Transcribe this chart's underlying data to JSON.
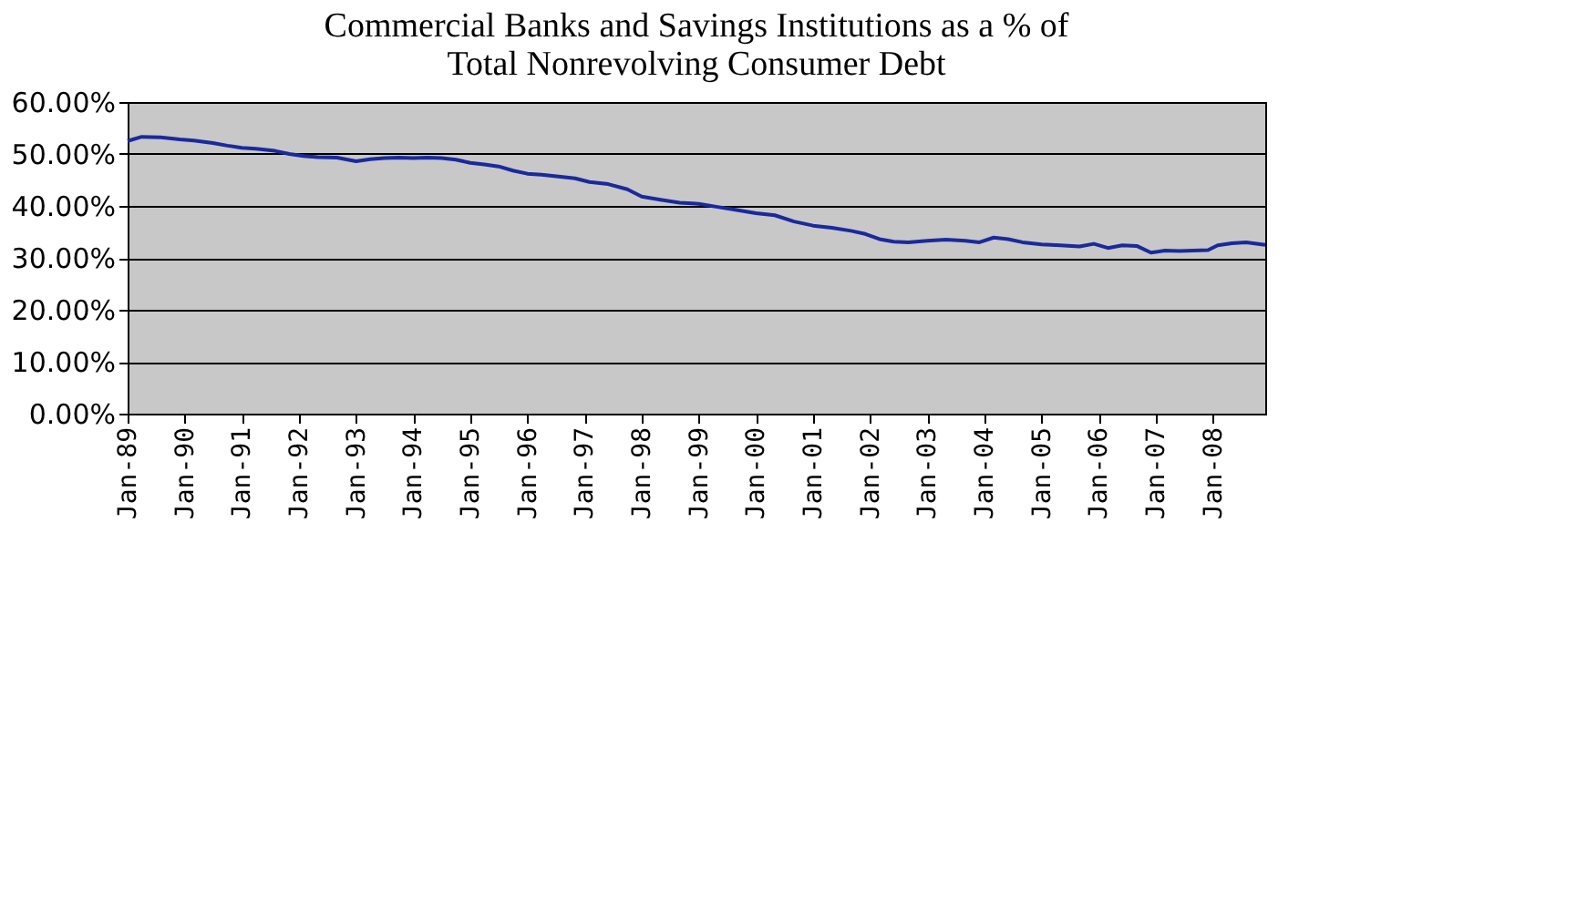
{
  "chart_data": {
    "type": "line",
    "title": "Commercial Banks and Savings Institutions as a % of Total Nonrevolving Consumer Debt",
    "x": [
      "1989-01",
      "1989-04",
      "1989-08",
      "1989-12",
      "1990-03",
      "1990-07",
      "1990-10",
      "1991-01",
      "1991-04",
      "1991-08",
      "1991-11",
      "1992-02",
      "1992-05",
      "1992-09",
      "1993-01",
      "1993-04",
      "1993-07",
      "1993-10",
      "1994-01",
      "1994-04",
      "1994-07",
      "1994-10",
      "1995-01",
      "1995-04",
      "1995-07",
      "1995-10",
      "1996-01",
      "1996-04",
      "1996-08",
      "1996-11",
      "1997-02",
      "1997-06",
      "1997-10",
      "1998-01",
      "1998-05",
      "1998-09",
      "1999-01",
      "1999-05",
      "1999-09",
      "2000-01",
      "2000-05",
      "2000-09",
      "2001-01",
      "2001-05",
      "2001-09",
      "2001-12",
      "2002-03",
      "2002-06",
      "2002-09",
      "2003-01",
      "2003-05",
      "2003-09",
      "2003-12",
      "2004-03",
      "2004-06",
      "2004-09",
      "2005-01",
      "2005-05",
      "2005-09",
      "2005-12",
      "2006-03",
      "2006-06",
      "2006-09",
      "2006-12",
      "2007-03",
      "2007-06",
      "2007-09",
      "2007-12",
      "2008-02",
      "2008-05",
      "2008-08",
      "2008-12"
    ],
    "series": [
      {
        "color": "#1a2a9c",
        "values": [
          52.5,
          53.3,
          53.2,
          52.8,
          52.6,
          52.1,
          51.6,
          51.2,
          51.0,
          50.6,
          50.0,
          49.6,
          49.4,
          49.3,
          48.6,
          49.0,
          49.2,
          49.3,
          49.2,
          49.3,
          49.2,
          48.9,
          48.3,
          48.0,
          47.6,
          46.8,
          46.2,
          46.0,
          45.6,
          45.3,
          44.6,
          44.2,
          43.2,
          41.8,
          41.2,
          40.6,
          40.4,
          39.8,
          39.2,
          38.6,
          38.2,
          37.0,
          36.2,
          35.8,
          35.2,
          34.6,
          33.6,
          33.1,
          33.0,
          33.3,
          33.5,
          33.3,
          33.0,
          33.9,
          33.6,
          33.0,
          32.6,
          32.4,
          32.2,
          32.7,
          31.9,
          32.4,
          32.3,
          31.0,
          31.4,
          31.3,
          31.4,
          31.5,
          32.4,
          32.8,
          33.0,
          32.5
        ]
      }
    ],
    "ylim": [
      0,
      60
    ],
    "yticks": [
      {
        "value": 0,
        "label": "0.00%"
      },
      {
        "value": 10,
        "label": "10.00%"
      },
      {
        "value": 20,
        "label": "20.00%"
      },
      {
        "value": 30,
        "label": "30.00%"
      },
      {
        "value": 40,
        "label": "40.00%"
      },
      {
        "value": 50,
        "label": "50.00%"
      },
      {
        "value": 60,
        "label": "60.00%"
      }
    ],
    "xlim": [
      "1989-01",
      "2008-12"
    ],
    "xticks": [
      {
        "value": "1989-01",
        "label": "Jan-89"
      },
      {
        "value": "1990-01",
        "label": "Jan-90"
      },
      {
        "value": "1991-01",
        "label": "Jan-91"
      },
      {
        "value": "1992-01",
        "label": "Jan-92"
      },
      {
        "value": "1993-01",
        "label": "Jan-93"
      },
      {
        "value": "1994-01",
        "label": "Jan-94"
      },
      {
        "value": "1995-01",
        "label": "Jan-95"
      },
      {
        "value": "1996-01",
        "label": "Jan-96"
      },
      {
        "value": "1997-01",
        "label": "Jan-97"
      },
      {
        "value": "1998-01",
        "label": "Jan-98"
      },
      {
        "value": "1999-01",
        "label": "Jan-99"
      },
      {
        "value": "2000-01",
        "label": "Jan-00"
      },
      {
        "value": "2001-01",
        "label": "Jan-01"
      },
      {
        "value": "2002-01",
        "label": "Jan-02"
      },
      {
        "value": "2003-01",
        "label": "Jan-03"
      },
      {
        "value": "2004-01",
        "label": "Jan-04"
      },
      {
        "value": "2005-01",
        "label": "Jan-05"
      },
      {
        "value": "2006-01",
        "label": "Jan-06"
      },
      {
        "value": "2007-01",
        "label": "Jan-07"
      },
      {
        "value": "2008-01",
        "label": "Jan-08"
      }
    ],
    "grid": "y",
    "marker": "none",
    "line_style": "solid"
  }
}
